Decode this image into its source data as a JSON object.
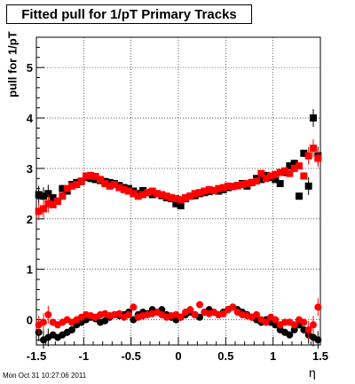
{
  "title": "Fitted pull for 1/pT  Primary Tracks",
  "footer": "Mon Oct 31 10:27:06 2011",
  "chart_data": {
    "type": "scatter",
    "title": "Fitted pull for 1/pT  Primary Tracks",
    "xlabel": "η",
    "ylabel": "pull for 1/pT",
    "xlim": [
      -1.5,
      1.5
    ],
    "ylim": [
      -0.5,
      5.6
    ],
    "grid": true,
    "x_ticks": [
      "-1.5",
      "-1",
      "-0.5",
      "0",
      "0.5",
      "1",
      "1.5"
    ],
    "y_ticks": [
      "0",
      "1",
      "2",
      "3",
      "4",
      "5"
    ],
    "x": [
      -1.475,
      -1.425,
      -1.375,
      -1.325,
      -1.275,
      -1.225,
      -1.175,
      -1.125,
      -1.075,
      -1.025,
      -0.975,
      -0.925,
      -0.875,
      -0.825,
      -0.775,
      -0.725,
      -0.675,
      -0.625,
      -0.575,
      -0.525,
      -0.475,
      -0.425,
      -0.375,
      -0.325,
      -0.275,
      -0.225,
      -0.175,
      -0.125,
      -0.075,
      -0.025,
      0.025,
      0.075,
      0.125,
      0.175,
      0.225,
      0.275,
      0.325,
      0.375,
      0.425,
      0.475,
      0.525,
      0.575,
      0.625,
      0.675,
      0.725,
      0.775,
      0.825,
      0.875,
      0.925,
      0.975,
      1.025,
      1.075,
      1.125,
      1.175,
      1.225,
      1.275,
      1.325,
      1.375,
      1.425,
      1.475
    ],
    "series": [
      {
        "color": "#000000",
        "marker": "square",
        "values": [
          2.48,
          2.45,
          2.5,
          2.42,
          2.35,
          2.6,
          2.55,
          2.68,
          2.72,
          2.74,
          2.82,
          2.8,
          2.78,
          2.76,
          2.74,
          2.72,
          2.7,
          2.66,
          2.62,
          2.6,
          2.55,
          2.5,
          2.56,
          2.52,
          2.48,
          2.5,
          2.46,
          2.42,
          2.4,
          2.3,
          2.26,
          2.4,
          2.45,
          2.46,
          2.5,
          2.52,
          2.54,
          2.56,
          2.55,
          2.58,
          2.62,
          2.64,
          2.66,
          2.7,
          2.65,
          2.72,
          2.8,
          2.78,
          2.86,
          2.82,
          2.78,
          2.7,
          2.92,
          3.05,
          3.1,
          2.45,
          3.3,
          2.65,
          4.0,
          3.25
        ]
      },
      {
        "color": "#000000",
        "marker": "circle",
        "values": [
          -0.25,
          -0.4,
          -0.35,
          -0.3,
          -0.35,
          -0.3,
          -0.25,
          -0.2,
          -0.1,
          -0.05,
          0.0,
          0.05,
          0.02,
          -0.05,
          -0.02,
          0.05,
          0.1,
          0.08,
          0.1,
          0.15,
          0.0,
          0.1,
          0.15,
          0.12,
          0.2,
          0.15,
          0.2,
          0.1,
          0.05,
          0.0,
          0.05,
          0.1,
          0.15,
          0.1,
          0.05,
          0.15,
          0.2,
          0.15,
          0.1,
          0.15,
          0.2,
          0.25,
          0.2,
          0.15,
          0.1,
          0.05,
          0.0,
          -0.05,
          0.0,
          -0.05,
          -0.1,
          -0.2,
          -0.25,
          -0.3,
          -0.2,
          -0.1,
          -0.2,
          -0.3,
          -0.35,
          -0.4
        ]
      },
      {
        "color": "#ff0000",
        "marker": "square",
        "values": [
          2.15,
          2.2,
          2.3,
          2.28,
          2.35,
          2.45,
          2.6,
          2.65,
          2.68,
          2.75,
          2.85,
          2.86,
          2.84,
          2.78,
          2.7,
          2.65,
          2.68,
          2.62,
          2.58,
          2.55,
          2.5,
          2.45,
          2.48,
          2.52,
          2.55,
          2.5,
          2.48,
          2.45,
          2.42,
          2.4,
          2.38,
          2.42,
          2.45,
          2.5,
          2.52,
          2.55,
          2.58,
          2.56,
          2.6,
          2.62,
          2.65,
          2.64,
          2.66,
          2.68,
          2.7,
          2.72,
          2.75,
          2.9,
          2.8,
          2.85,
          2.88,
          2.92,
          2.95,
          2.9,
          3.0,
          3.05,
          2.85,
          3.25,
          3.4,
          3.2
        ]
      },
      {
        "color": "#ff0000",
        "marker": "circle",
        "values": [
          -0.1,
          -0.05,
          0.1,
          -0.05,
          -0.1,
          -0.05,
          0.0,
          -0.05,
          0.0,
          0.05,
          0.1,
          0.08,
          0.05,
          0.1,
          0.12,
          0.08,
          0.1,
          0.12,
          0.05,
          0.1,
          0.25,
          0.05,
          0.08,
          0.1,
          0.12,
          0.15,
          0.1,
          0.05,
          0.08,
          0.1,
          0.05,
          0.15,
          0.2,
          0.1,
          0.3,
          0.15,
          0.12,
          0.15,
          0.1,
          0.12,
          0.2,
          0.25,
          0.15,
          0.1,
          0.08,
          0.05,
          0.1,
          0.0,
          -0.05,
          0.05,
          0.0,
          -0.1,
          -0.05,
          -0.05,
          -0.1,
          0.0,
          -0.05,
          -0.2,
          -0.1,
          0.25
        ]
      }
    ]
  }
}
